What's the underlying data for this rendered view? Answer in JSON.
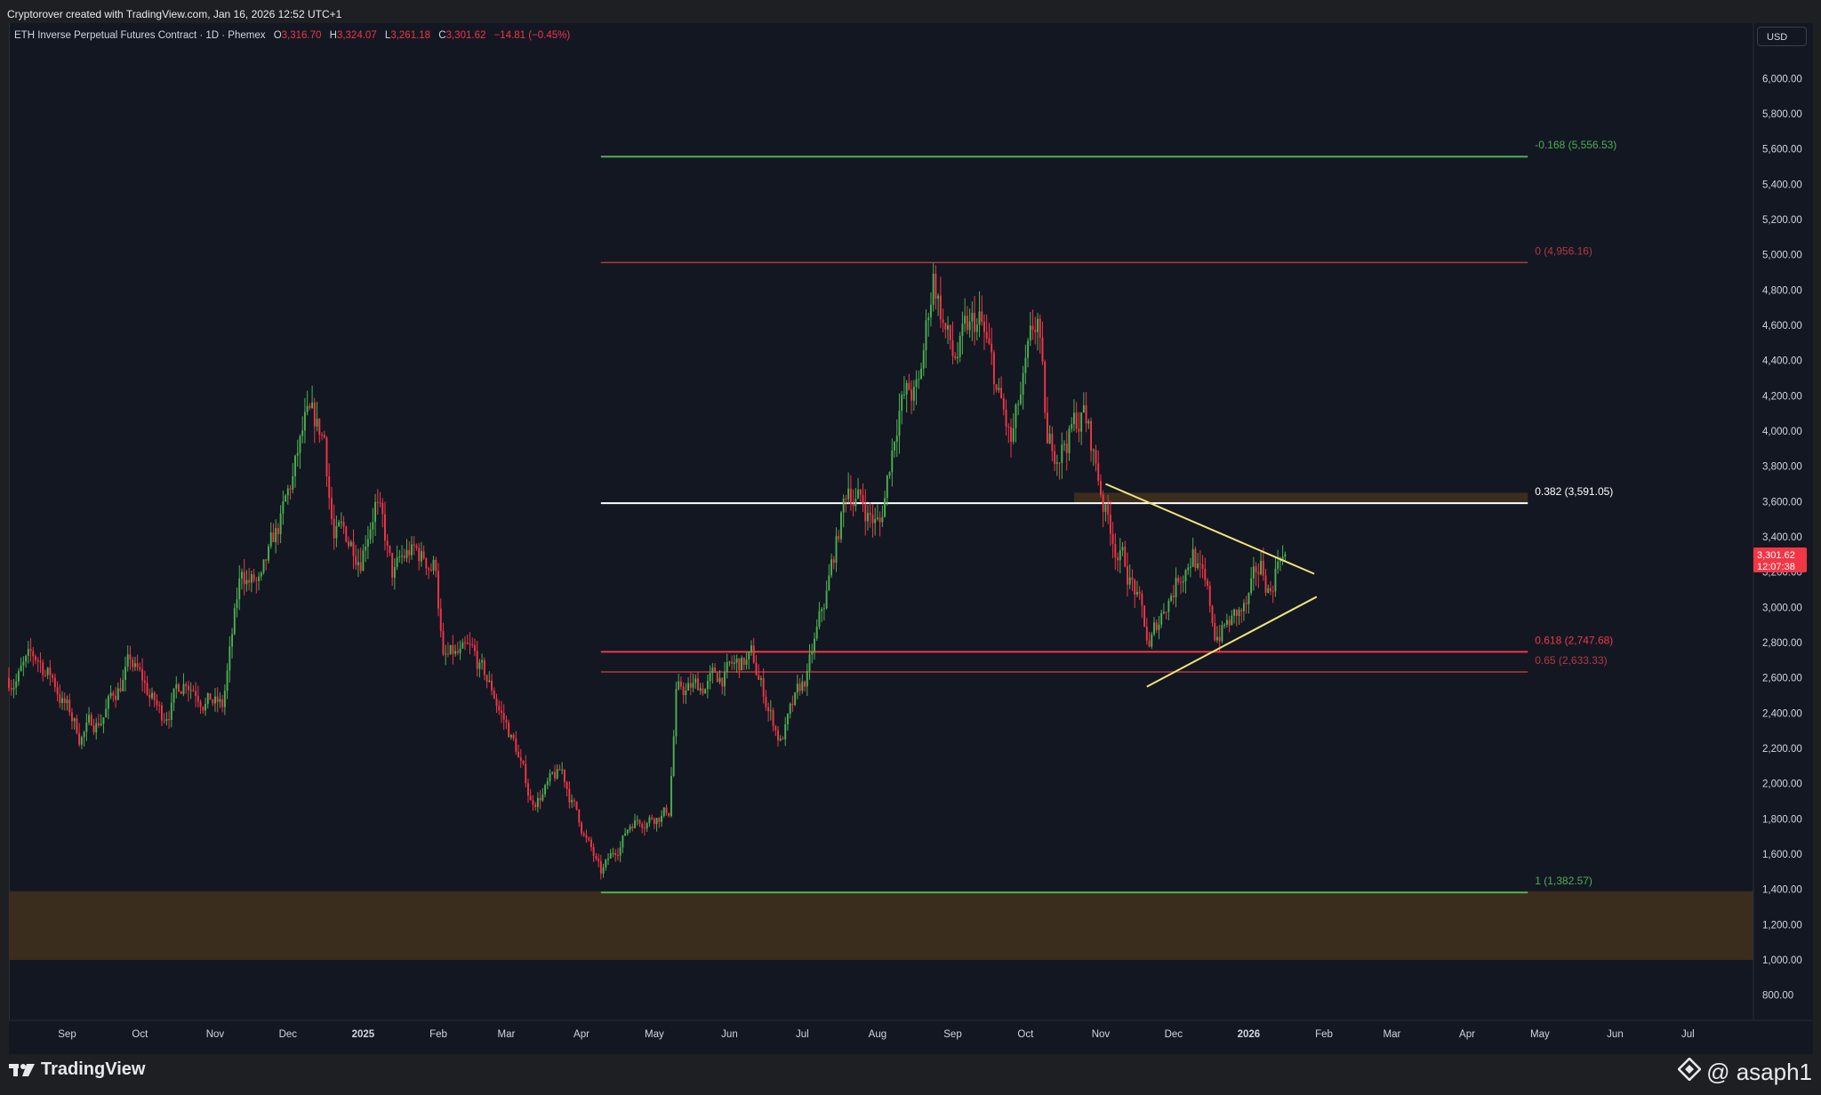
{
  "header": {
    "attribution": "Cryptorover created with TradingView.com, Jan 16, 2026 12:52 UTC+1"
  },
  "legend": {
    "symbol": "ETH Inverse Perpetual Futures Contract · 1D · Phemex",
    "o_label": "O",
    "o_value": "3,316.70",
    "h_label": "H",
    "h_value": "3,324.07",
    "l_label": "L",
    "l_value": "3,261.18",
    "c_label": "C",
    "c_value": "3,301.62",
    "change": "−14.81 (−0.45%)"
  },
  "currency_button": "USD",
  "colors": {
    "background": "#131722",
    "up": "#4caf50",
    "down": "#f23645",
    "zone": "#3d2e1f",
    "triangle": "#f1e27a",
    "fib_green": "#4caf50",
    "fib_red": "#b2393f",
    "fib_white": "#ffffff"
  },
  "price_tag": {
    "price": "3,301.62",
    "countdown": "12:07:38"
  },
  "footer": {
    "brand": "TradingView",
    "author": "@ asaph1"
  },
  "chart_data": {
    "type": "candlestick",
    "timeframe": "1D",
    "y_unit": "USD",
    "ylim": [
      700,
      6150
    ],
    "y_ticks": [
      "6,000.00",
      "5,800.00",
      "5,600.00",
      "5,400.00",
      "5,200.00",
      "5,000.00",
      "4,800.00",
      "4,600.00",
      "4,400.00",
      "4,200.00",
      "4,000.00",
      "3,800.00",
      "3,600.00",
      "3,400.00",
      "3,200.00",
      "3,000.00",
      "2,800.00",
      "2,600.00",
      "2,400.00",
      "2,200.00",
      "2,000.00",
      "1,800.00",
      "1,600.00",
      "1,400.00",
      "1,200.00",
      "1,000.00",
      "800.00"
    ],
    "x_ticks": [
      {
        "label": "Sep",
        "date": "2024-09-01",
        "bold": false
      },
      {
        "label": "Oct",
        "date": "2024-10-01",
        "bold": false
      },
      {
        "label": "Nov",
        "date": "2024-11-01",
        "bold": false
      },
      {
        "label": "Dec",
        "date": "2024-12-01",
        "bold": false
      },
      {
        "label": "2025",
        "date": "2025-01-01",
        "bold": true
      },
      {
        "label": "Feb",
        "date": "2025-02-01",
        "bold": false
      },
      {
        "label": "Mar",
        "date": "2025-03-01",
        "bold": false
      },
      {
        "label": "Apr",
        "date": "2025-04-01",
        "bold": false
      },
      {
        "label": "May",
        "date": "2025-05-01",
        "bold": false
      },
      {
        "label": "Jun",
        "date": "2025-06-01",
        "bold": false
      },
      {
        "label": "Jul",
        "date": "2025-07-01",
        "bold": false
      },
      {
        "label": "Aug",
        "date": "2025-08-01",
        "bold": false
      },
      {
        "label": "Sep",
        "date": "2025-09-01",
        "bold": false
      },
      {
        "label": "Oct",
        "date": "2025-10-01",
        "bold": false
      },
      {
        "label": "Nov",
        "date": "2025-11-01",
        "bold": false
      },
      {
        "label": "Dec",
        "date": "2025-12-01",
        "bold": false
      },
      {
        "label": "2026",
        "date": "2026-01-01",
        "bold": true
      },
      {
        "label": "Feb",
        "date": "2026-02-01",
        "bold": false
      },
      {
        "label": "Mar",
        "date": "2026-03-01",
        "bold": false
      },
      {
        "label": "Apr",
        "date": "2026-04-01",
        "bold": false
      },
      {
        "label": "May",
        "date": "2026-05-01",
        "bold": false
      },
      {
        "label": "Jun",
        "date": "2026-06-01",
        "bold": false
      },
      {
        "label": "Jul",
        "date": "2026-07-01",
        "bold": false
      }
    ],
    "price_path": [
      [
        "2024-08-08",
        2600
      ],
      [
        "2024-08-14",
        2650
      ],
      [
        "2024-08-20",
        2700
      ],
      [
        "2024-08-26",
        2600
      ],
      [
        "2024-09-06",
        2280
      ],
      [
        "2024-09-15",
        2380
      ],
      [
        "2024-09-27",
        2680
      ],
      [
        "2024-10-10",
        2380
      ],
      [
        "2024-10-20",
        2620
      ],
      [
        "2024-11-04",
        2420
      ],
      [
        "2024-11-12",
        3200
      ],
      [
        "2024-11-20",
        3100
      ],
      [
        "2024-12-01",
        3600
      ],
      [
        "2024-12-08",
        4000
      ],
      [
        "2024-12-16",
        3950
      ],
      [
        "2024-12-20",
        3400
      ],
      [
        "2024-12-31",
        3350
      ],
      [
        "2025-01-06",
        3650
      ],
      [
        "2025-01-13",
        3150
      ],
      [
        "2025-01-20",
        3300
      ],
      [
        "2025-01-31",
        3250
      ],
      [
        "2025-02-03",
        2700
      ],
      [
        "2025-02-15",
        2700
      ],
      [
        "2025-02-24",
        2500
      ],
      [
        "2025-03-05",
        2200
      ],
      [
        "2025-03-11",
        1900
      ],
      [
        "2025-03-24",
        2050
      ],
      [
        "2025-03-31",
        1800
      ],
      [
        "2025-04-09",
        1470
      ],
      [
        "2025-04-22",
        1800
      ],
      [
        "2025-05-07",
        1850
      ],
      [
        "2025-05-10",
        2500
      ],
      [
        "2025-05-20",
        2550
      ],
      [
        "2025-06-10",
        2700
      ],
      [
        "2025-06-22",
        2250
      ],
      [
        "2025-07-03",
        2600
      ],
      [
        "2025-07-10",
        3000
      ],
      [
        "2025-07-20",
        3700
      ],
      [
        "2025-08-02",
        3450
      ],
      [
        "2025-08-10",
        4200
      ],
      [
        "2025-08-18",
        4200
      ],
      [
        "2025-08-24",
        4900
      ],
      [
        "2025-09-01",
        4400
      ],
      [
        "2025-09-12",
        4600
      ],
      [
        "2025-09-25",
        3900
      ],
      [
        "2025-10-06",
        4600
      ],
      [
        "2025-10-10",
        3850
      ],
      [
        "2025-10-25",
        4100
      ],
      [
        "2025-11-04",
        3500
      ],
      [
        "2025-11-15",
        3100
      ],
      [
        "2025-11-21",
        2750
      ],
      [
        "2025-11-28",
        3050
      ],
      [
        "2025-12-09",
        3350
      ],
      [
        "2025-12-18",
        2850
      ],
      [
        "2025-12-31",
        2980
      ],
      [
        "2026-01-06",
        3200
      ],
      [
        "2026-01-10",
        3100
      ],
      [
        "2026-01-14",
        3350
      ],
      [
        "2026-01-16",
        3301.62
      ]
    ],
    "fib_levels": [
      {
        "ratio": "-0.168",
        "price": 5556.53,
        "label": "-0.168 (5,556.53)",
        "color": "#4caf50",
        "width": 2
      },
      {
        "ratio": "0",
        "price": 4956.16,
        "label": "0 (4,956.16)",
        "color": "#b2393f",
        "width": 1.5
      },
      {
        "ratio": "0.382",
        "price": 3591.05,
        "label": "0.382 (3,591.05)",
        "color": "#ffffff",
        "width": 2
      },
      {
        "ratio": "0.618",
        "price": 2747.68,
        "label": "0.618 (2,747.68)",
        "color": "#f23645",
        "width": 2
      },
      {
        "ratio": "0.65",
        "price": 2633.33,
        "label": "0.65 (2,633.33)",
        "color": "#b2393f",
        "width": 1.5
      },
      {
        "ratio": "1",
        "price": 1382.57,
        "label": "1 (1,382.57)",
        "color": "#4caf50",
        "width": 2
      }
    ],
    "fib_range": {
      "start": "2025-04-09",
      "end": "2026-04-26"
    },
    "zones": [
      {
        "start": "2024-08-08",
        "end": "2026-07-28",
        "top": 1390,
        "bottom": 1000
      },
      {
        "start": "2025-10-21",
        "end": "2026-04-26",
        "top": 3650,
        "bottom": 3590
      }
    ],
    "triangle": {
      "upper": [
        [
          "2025-11-03",
          3700
        ],
        [
          "2026-01-28",
          3190
        ]
      ],
      "lower": [
        [
          "2025-11-20",
          2550
        ],
        [
          "2026-01-29",
          3060
        ]
      ]
    },
    "last_price": 3301.62
  }
}
